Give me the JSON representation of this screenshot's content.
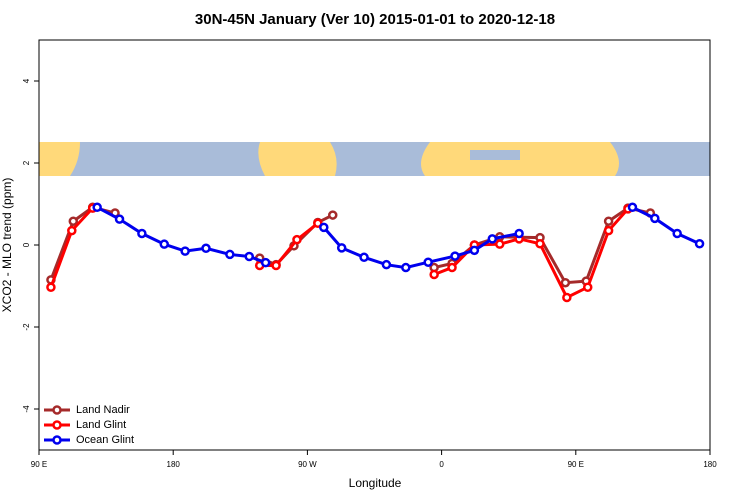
{
  "chart_data": {
    "type": "line",
    "title": "30N-45N January (Ver 10)   2015-01-01 to 2020-12-18",
    "x_label": "Longitude",
    "y_label": "XCO2 - MLO trend (ppm)",
    "xlim": [
      90,
      540
    ],
    "xticks": [
      {
        "value": 90,
        "label": "90 E"
      },
      180,
      {
        "value": 270,
        "label": "90 W"
      },
      {
        "value": 360,
        "label": "0"
      },
      {
        "value": 450,
        "label": "90 E"
      },
      {
        "value": 540,
        "label": "180"
      }
    ],
    "ylim": [
      -5,
      5
    ],
    "yticks": [
      -4,
      -2,
      0,
      2,
      4
    ],
    "legend": "bottom-left",
    "series": [
      {
        "name": "Land Nadir",
        "color": "#a52a2a",
        "x": [
          98,
          113,
          126,
          141,
          null,
          238,
          249,
          261,
          277,
          287,
          null,
          355,
          367,
          382,
          399,
          426,
          443,
          457,
          472,
          485,
          500
        ],
        "values": [
          -0.85,
          0.58,
          0.92,
          0.78,
          null,
          -0.32,
          -0.48,
          -0.02,
          0.55,
          0.73,
          null,
          -0.55,
          -0.45,
          0.0,
          0.2,
          0.18,
          -0.92,
          -0.88,
          0.58,
          0.9,
          0.78
        ]
      },
      {
        "name": "Land Glint",
        "color": "#ff0000",
        "x": [
          98,
          112,
          126,
          null,
          238,
          249,
          263,
          277,
          null,
          355,
          367,
          382,
          399,
          412,
          426,
          444,
          458,
          472,
          485
        ],
        "values": [
          -1.03,
          0.35,
          0.9,
          null,
          -0.5,
          -0.5,
          0.13,
          0.53,
          null,
          -0.72,
          -0.55,
          0.0,
          0.02,
          0.15,
          0.03,
          -1.28,
          -1.03,
          0.35,
          0.88
        ]
      },
      {
        "name": "Ocean Glint",
        "color": "#0000ee",
        "x": [
          129,
          144,
          159,
          174,
          188,
          202,
          218,
          231,
          242,
          null,
          281,
          293,
          308,
          323,
          336,
          351,
          369,
          382,
          394,
          412,
          null,
          488,
          503,
          518,
          533
        ],
        "values": [
          0.92,
          0.63,
          0.28,
          0.02,
          -0.15,
          -0.08,
          -0.23,
          -0.28,
          -0.43,
          null,
          0.43,
          -0.07,
          -0.3,
          -0.48,
          -0.55,
          -0.42,
          -0.27,
          -0.13,
          0.15,
          0.28,
          null,
          0.92,
          0.65,
          0.28,
          0.03
        ]
      }
    ]
  }
}
